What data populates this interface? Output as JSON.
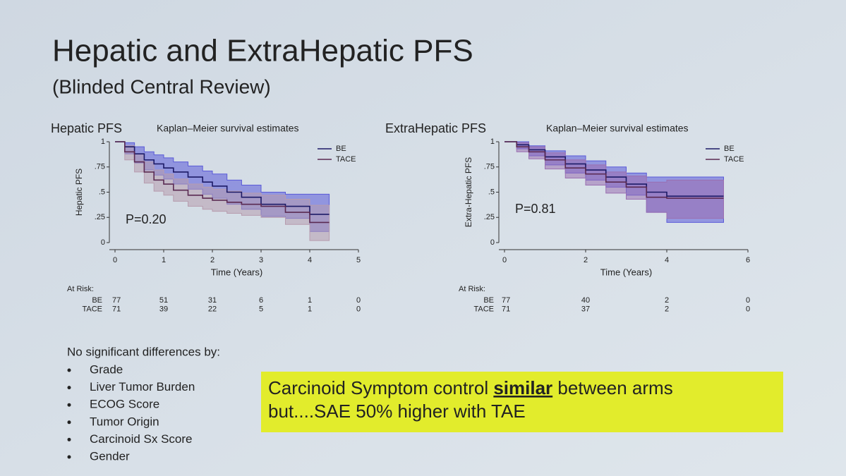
{
  "title": "Hepatic and ExtraHepatic PFS",
  "subtitle": "(Blinded Central Review)",
  "chart_data": [
    {
      "type": "line",
      "step": true,
      "heading": "Hepatic PFS",
      "title": "Kaplan–Meier survival estimates",
      "x_label": "Time (Years)",
      "y_label": "Hepatic PFS",
      "annotation": "P=0.20",
      "x": [
        0,
        0.2,
        0.4,
        0.6,
        0.8,
        1,
        1.2,
        1.5,
        1.8,
        2,
        2.3,
        2.6,
        3,
        3.5,
        4,
        4.4
      ],
      "series": [
        {
          "name": "BE",
          "color": "#1c1a66",
          "band_color": "#5a5ad8",
          "values": [
            1,
            0.95,
            0.88,
            0.82,
            0.78,
            0.74,
            0.7,
            0.65,
            0.6,
            0.56,
            0.5,
            0.45,
            0.38,
            0.36,
            0.28,
            0.28
          ],
          "lower": [
            1,
            0.88,
            0.79,
            0.72,
            0.67,
            0.63,
            0.58,
            0.53,
            0.48,
            0.44,
            0.38,
            0.33,
            0.26,
            0.24,
            0.11,
            0.11
          ],
          "upper": [
            1,
            0.99,
            0.95,
            0.9,
            0.87,
            0.84,
            0.8,
            0.76,
            0.71,
            0.68,
            0.62,
            0.57,
            0.5,
            0.48,
            0.48,
            0.48
          ]
        },
        {
          "name": "TACE",
          "color": "#5a2a52",
          "band_color": "#b79cae",
          "values": [
            1,
            0.9,
            0.8,
            0.7,
            0.62,
            0.58,
            0.52,
            0.47,
            0.44,
            0.42,
            0.4,
            0.38,
            0.36,
            0.3,
            0.2,
            0.2
          ],
          "lower": [
            1,
            0.82,
            0.7,
            0.59,
            0.51,
            0.47,
            0.41,
            0.36,
            0.33,
            0.31,
            0.29,
            0.27,
            0.25,
            0.18,
            0.02,
            0.02
          ],
          "upper": [
            1,
            0.96,
            0.88,
            0.8,
            0.72,
            0.68,
            0.63,
            0.58,
            0.55,
            0.53,
            0.51,
            0.49,
            0.47,
            0.43,
            0.37,
            0.37
          ]
        }
      ],
      "xlim": [
        0,
        5
      ],
      "xticks": [
        0,
        1,
        2,
        3,
        4,
        5
      ],
      "ylim": [
        0,
        1
      ],
      "yticks": [
        0,
        {
          "value": 0.25,
          "label": ".25"
        },
        {
          "value": 0.5,
          "label": ".5"
        },
        {
          "value": 0.75,
          "label": ".75"
        },
        1
      ],
      "at_risk": {
        "label": "At Risk:",
        "times": [
          0,
          1,
          2,
          3,
          4,
          5
        ],
        "rows": [
          {
            "name": "BE",
            "values": [
              77,
              51,
              31,
              6,
              1,
              0
            ]
          },
          {
            "name": "TACE",
            "values": [
              71,
              39,
              22,
              5,
              1,
              0
            ]
          }
        ]
      }
    },
    {
      "type": "line",
      "step": true,
      "heading": "ExtraHepatic PFS",
      "title": "Kaplan–Meier survival estimates",
      "x_label": "Time (Years)",
      "y_label": "Extra-Hepatic PFS",
      "annotation": "P=0.81",
      "x": [
        0,
        0.3,
        0.6,
        1,
        1.5,
        2,
        2.5,
        3,
        3.5,
        4,
        4.7,
        5.4
      ],
      "series": [
        {
          "name": "BE",
          "color": "#1c1a66",
          "band_color": "#5a5ad8",
          "values": [
            1,
            0.97,
            0.92,
            0.85,
            0.78,
            0.72,
            0.65,
            0.58,
            0.5,
            0.46,
            0.46,
            0.46
          ],
          "lower": [
            1,
            0.93,
            0.86,
            0.77,
            0.69,
            0.62,
            0.55,
            0.47,
            0.3,
            0.2,
            0.2,
            0.2
          ],
          "upper": [
            1,
            1,
            0.96,
            0.91,
            0.86,
            0.81,
            0.75,
            0.69,
            0.65,
            0.65,
            0.65,
            0.65
          ]
        },
        {
          "name": "TACE",
          "color": "#5a2a52",
          "band_color": "#9a6fb0",
          "values": [
            1,
            0.95,
            0.9,
            0.82,
            0.74,
            0.68,
            0.6,
            0.55,
            0.45,
            0.44,
            0.44,
            0.44
          ],
          "lower": [
            1,
            0.9,
            0.83,
            0.73,
            0.64,
            0.57,
            0.49,
            0.43,
            0.3,
            0.24,
            0.24,
            0.24
          ],
          "upper": [
            1,
            0.99,
            0.95,
            0.89,
            0.82,
            0.77,
            0.7,
            0.66,
            0.6,
            0.62,
            0.62,
            0.62
          ]
        }
      ],
      "xlim": [
        0,
        6
      ],
      "xticks": [
        0,
        2,
        4,
        6
      ],
      "ylim": [
        0,
        1
      ],
      "yticks": [
        0,
        {
          "value": 0.25,
          "label": ".25"
        },
        {
          "value": 0.5,
          "label": ".5"
        },
        {
          "value": 0.75,
          "label": ".75"
        },
        1
      ],
      "at_risk": {
        "label": "At Risk:",
        "times": [
          0,
          2,
          4,
          6
        ],
        "rows": [
          {
            "name": "BE",
            "values": [
              77,
              40,
              2,
              0
            ]
          },
          {
            "name": "TACE",
            "values": [
              71,
              37,
              2,
              0
            ]
          }
        ]
      }
    }
  ],
  "notes": {
    "heading": "No significant differences by:",
    "items": [
      "Grade",
      "Liver Tumor Burden",
      "ECOG Score",
      "Tumor Origin",
      "Carcinoid Sx Score",
      "Gender"
    ]
  },
  "callout": {
    "line1": [
      "Carcinoid Symptom control ",
      "similar",
      " between arms"
    ],
    "line2": "but....SAE 50% higher with TAE"
  }
}
